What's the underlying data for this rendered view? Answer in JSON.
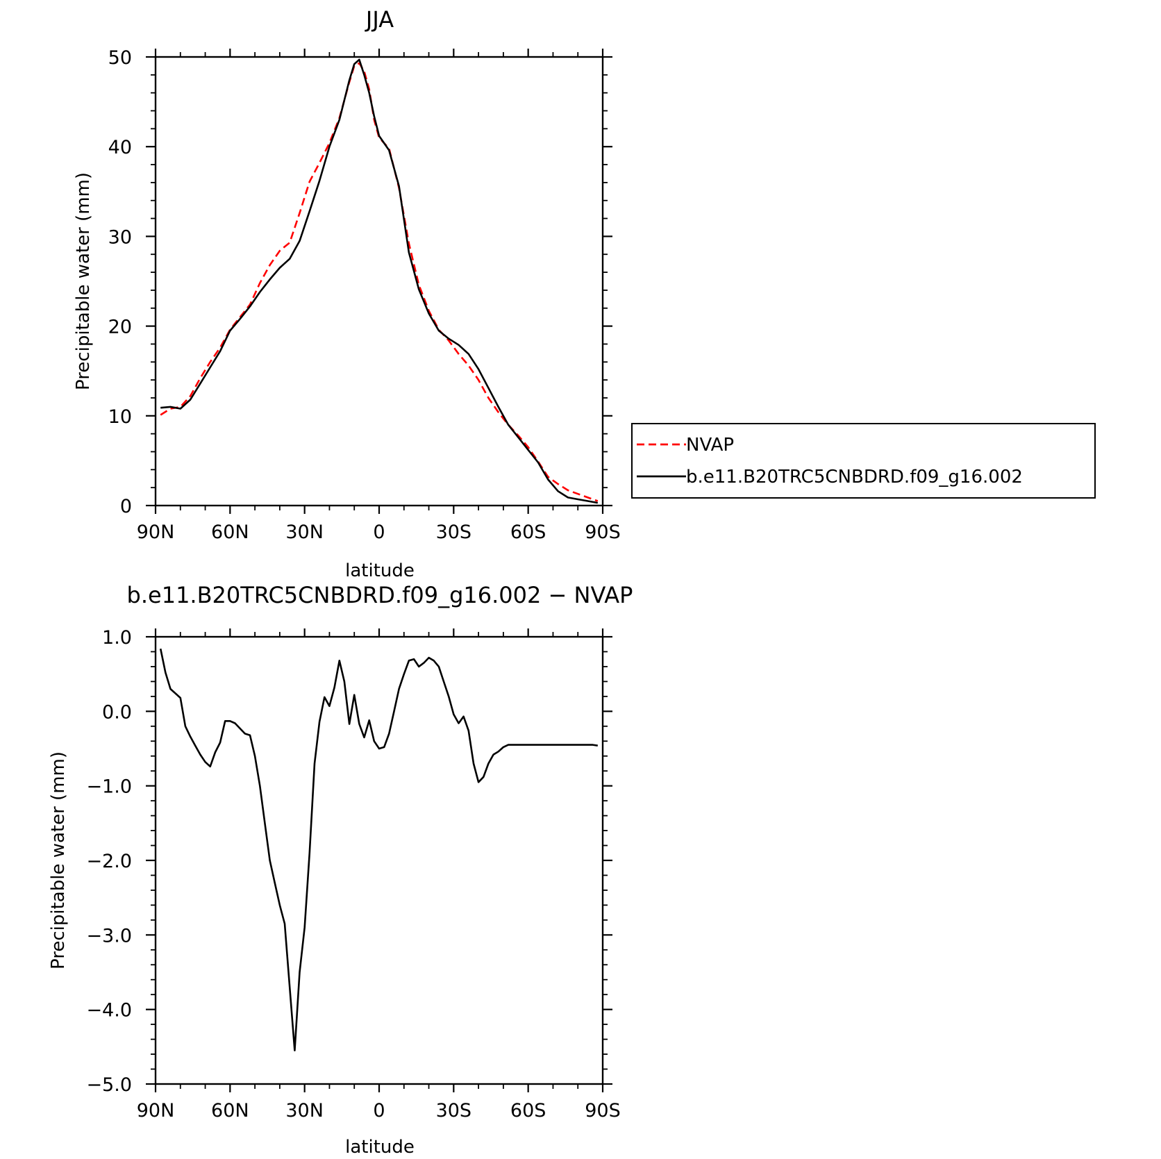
{
  "colors": {
    "nvap": "#ff0000",
    "model": "#000000"
  },
  "chart_data": [
    {
      "type": "line",
      "title": "JJA",
      "xlabel": "latitude",
      "ylabel": "Precipitable water (mm)",
      "xlim": [
        90,
        -90
      ],
      "ylim": [
        0,
        50
      ],
      "xticks": [
        {
          "value": 90,
          "label": "90N"
        },
        {
          "value": 60,
          "label": "60N"
        },
        {
          "value": 30,
          "label": "30N"
        },
        {
          "value": 0,
          "label": "0"
        },
        {
          "value": -30,
          "label": "30S"
        },
        {
          "value": -60,
          "label": "60S"
        },
        {
          "value": -90,
          "label": "90S"
        }
      ],
      "yticks": [
        {
          "value": 0,
          "label": "0"
        },
        {
          "value": 10,
          "label": "10"
        },
        {
          "value": 20,
          "label": "20"
        },
        {
          "value": 30,
          "label": "30"
        },
        {
          "value": 40,
          "label": "40"
        },
        {
          "value": 50,
          "label": "50"
        }
      ],
      "legend_position": "right",
      "series": [
        {
          "name": "NVAP",
          "style": "dashed",
          "color": "#ff0000",
          "x": [
            88,
            84,
            80,
            76,
            72,
            68,
            64,
            60,
            56,
            52,
            48,
            44,
            40,
            36,
            32,
            28,
            24,
            20,
            16,
            12,
            10,
            8,
            6,
            4,
            2,
            0,
            -4,
            -8,
            -12,
            -16,
            -20,
            -24,
            -28,
            -32,
            -36,
            -40,
            -44,
            -48,
            -52,
            -56,
            -60,
            -64,
            -68,
            -72,
            -76,
            -80,
            -84,
            -88
          ],
          "values": [
            10.1,
            10.8,
            11.0,
            12.2,
            14.2,
            16.0,
            17.6,
            19.6,
            21.0,
            22.4,
            24.8,
            26.8,
            28.4,
            29.3,
            32.6,
            36.1,
            38.2,
            40.4,
            43.2,
            47.2,
            49.0,
            49.3,
            48.4,
            46.4,
            43.0,
            41.0,
            39.8,
            35.4,
            29.2,
            24.6,
            21.7,
            19.6,
            18.4,
            16.9,
            15.6,
            14.0,
            12.0,
            10.4,
            9.0,
            7.8,
            6.5,
            4.9,
            3.2,
            2.4,
            1.7,
            1.3,
            0.9,
            0.5
          ]
        },
        {
          "name": "b.e11.B20TRC5CNBDRD.f09_g16.002",
          "style": "solid",
          "color": "#000000",
          "x": [
            88,
            84,
            80,
            76,
            72,
            68,
            64,
            60,
            56,
            52,
            48,
            44,
            40,
            36,
            32,
            28,
            24,
            20,
            16,
            12,
            10,
            8,
            6,
            4,
            2,
            0,
            -4,
            -8,
            -12,
            -16,
            -20,
            -24,
            -28,
            -32,
            -36,
            -40,
            -44,
            -48,
            -52,
            -56,
            -60,
            -64,
            -68,
            -72,
            -76,
            -80,
            -84,
            -88
          ],
          "values": [
            10.9,
            11.0,
            10.8,
            11.8,
            13.6,
            15.4,
            17.2,
            19.5,
            20.8,
            22.2,
            23.8,
            25.2,
            26.5,
            27.5,
            29.5,
            32.8,
            36.2,
            40.0,
            43.0,
            47.4,
            49.2,
            49.7,
            48.0,
            46.0,
            43.4,
            41.2,
            39.6,
            35.6,
            28.2,
            24.1,
            21.4,
            19.5,
            18.6,
            17.9,
            16.9,
            15.2,
            13.1,
            11.0,
            9.0,
            7.6,
            6.2,
            4.8,
            2.9,
            1.6,
            0.9,
            0.7,
            0.5,
            0.3
          ]
        }
      ]
    },
    {
      "type": "line",
      "title": "b.e11.B20TRC5CNBDRD.f09_g16.002 − NVAP",
      "xlabel": "latitude",
      "ylabel": "Precipitable water (mm)",
      "xlim": [
        90,
        -90
      ],
      "ylim": [
        -5.0,
        1.0
      ],
      "xticks": [
        {
          "value": 90,
          "label": "90N"
        },
        {
          "value": 60,
          "label": "60N"
        },
        {
          "value": 30,
          "label": "30N"
        },
        {
          "value": 0,
          "label": "0"
        },
        {
          "value": -30,
          "label": "30S"
        },
        {
          "value": -60,
          "label": "60S"
        },
        {
          "value": -90,
          "label": "90S"
        }
      ],
      "yticks": [
        {
          "value": 1.0,
          "label": "1.0"
        },
        {
          "value": 0.0,
          "label": "0.0"
        },
        {
          "value": -1.0,
          "label": "−1.0"
        },
        {
          "value": -2.0,
          "label": "−2.0"
        },
        {
          "value": -3.0,
          "label": "−3.0"
        },
        {
          "value": -4.0,
          "label": "−4.0"
        },
        {
          "value": -5.0,
          "label": "−5.0"
        }
      ],
      "series": [
        {
          "style": "solid",
          "color": "#000000",
          "x": [
            88,
            86,
            84,
            80,
            78,
            76,
            74,
            72,
            70,
            68,
            66,
            64,
            62,
            60,
            58,
            54,
            52,
            50,
            48,
            46,
            44,
            42,
            40,
            38,
            36,
            34,
            32,
            30,
            28,
            26,
            24,
            22,
            20,
            18,
            16,
            14,
            12,
            10,
            8,
            6,
            4,
            2,
            0,
            -2,
            -4,
            -6,
            -8,
            -10,
            -12,
            -14,
            -16,
            -18,
            -20,
            -22,
            -24,
            -26,
            -28,
            -30,
            -32,
            -34,
            -36,
            -38,
            -40,
            -42,
            -44,
            -46,
            -48,
            -50,
            -52,
            -54,
            -56,
            -58,
            -60,
            -62,
            -64,
            -66,
            -68,
            -70,
            -72,
            -74,
            -76,
            -78,
            -80,
            -82,
            -84,
            -86,
            -88
          ],
          "values": [
            0.84,
            0.52,
            0.3,
            0.18,
            -0.2,
            -0.34,
            -0.46,
            -0.58,
            -0.68,
            -0.74,
            -0.55,
            -0.42,
            -0.13,
            -0.13,
            -0.16,
            -0.3,
            -0.32,
            -0.6,
            -1.0,
            -1.5,
            -2.0,
            -2.3,
            -2.6,
            -2.85,
            -3.7,
            -4.55,
            -3.5,
            -2.9,
            -1.9,
            -0.7,
            -0.14,
            0.19,
            0.07,
            0.32,
            0.68,
            0.4,
            -0.17,
            0.22,
            -0.17,
            -0.35,
            -0.12,
            -0.4,
            -0.5,
            -0.48,
            -0.3,
            0.0,
            0.3,
            0.5,
            0.68,
            0.7,
            0.6,
            0.65,
            0.72,
            0.68,
            0.6,
            0.4,
            0.2,
            -0.04,
            -0.16,
            -0.07,
            -0.26,
            -0.7,
            -0.95,
            -0.88,
            -0.7,
            -0.58,
            -0.54,
            -0.48,
            -0.45,
            -0.45,
            -0.45,
            -0.45,
            -0.45,
            -0.45,
            -0.45,
            -0.45,
            -0.45,
            -0.45,
            -0.45,
            -0.45,
            -0.45,
            -0.45,
            -0.45,
            -0.45,
            -0.45,
            -0.45,
            -0.46
          ]
        }
      ]
    }
  ]
}
